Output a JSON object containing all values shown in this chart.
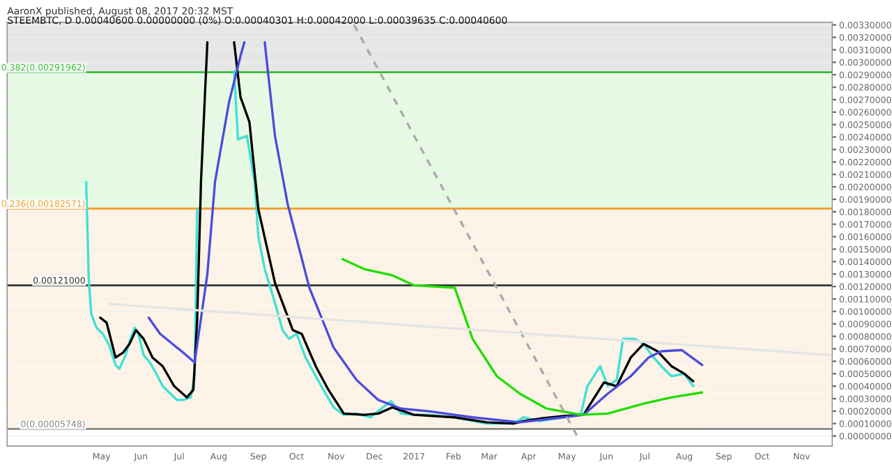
{
  "chart_data": {
    "type": "line",
    "title": "AaronX published, August 08, 2017 20:32 MST",
    "subtitle": "STEEMBTC, D 0.00040600 0.00000000 (0%) O:0.00040301 H:0.00042000 L:0.00039635 C:0.00040600",
    "xlim": [
      "2016-02-17",
      "2017-11-25"
    ],
    "xticks": [
      {
        "value": "2016-05-01",
        "label": "May"
      },
      {
        "value": "2016-06-01",
        "label": "Jun"
      },
      {
        "value": "2016-07-01",
        "label": "Jul"
      },
      {
        "value": "2016-08-01",
        "label": "Aug"
      },
      {
        "value": "2016-09-01",
        "label": "Sep"
      },
      {
        "value": "2016-10-01",
        "label": "Oct"
      },
      {
        "value": "2016-11-01",
        "label": "Nov"
      },
      {
        "value": "2016-12-01",
        "label": "Dec"
      },
      {
        "value": "2017-01-01",
        "label": "2017"
      },
      {
        "value": "2017-02-01",
        "label": "Feb"
      },
      {
        "value": "2017-03-01",
        "label": "Mar"
      },
      {
        "value": "2017-04-01",
        "label": "Apr"
      },
      {
        "value": "2017-05-01",
        "label": "May"
      },
      {
        "value": "2017-06-01",
        "label": "Jun"
      },
      {
        "value": "2017-07-01",
        "label": "Jul"
      },
      {
        "value": "2017-08-01",
        "label": "Aug"
      },
      {
        "value": "2017-09-01",
        "label": "Sep"
      },
      {
        "value": "2017-10-01",
        "label": "Oct"
      },
      {
        "value": "2017-11-01",
        "label": "Nov"
      }
    ],
    "ylim": [
      -8e-05,
      0.00332
    ],
    "yticks": [
      {
        "value": 0,
        "label": "0.00000000"
      },
      {
        "value": 0.0001,
        "label": "0.00010000"
      },
      {
        "value": 0.0002,
        "label": "0.00020000"
      },
      {
        "value": 0.0003,
        "label": "0.00030000"
      },
      {
        "value": 0.0004,
        "label": "0.00040000"
      },
      {
        "value": 0.0005,
        "label": "0.00050000"
      },
      {
        "value": 0.0006,
        "label": "0.00060000"
      },
      {
        "value": 0.0007,
        "label": "0.00070000"
      },
      {
        "value": 0.0008,
        "label": "0.00080000"
      },
      {
        "value": 0.0009,
        "label": "0.00090000"
      },
      {
        "value": 0.001,
        "label": "0.00100000"
      },
      {
        "value": 0.0011,
        "label": "0.00110000"
      },
      {
        "value": 0.0012,
        "label": "0.00120000"
      },
      {
        "value": 0.0013,
        "label": "0.00130000"
      },
      {
        "value": 0.0014,
        "label": "0.00140000"
      },
      {
        "value": 0.0015,
        "label": "0.00150000"
      },
      {
        "value": 0.0016,
        "label": "0.00160000"
      },
      {
        "value": 0.0017,
        "label": "0.00170000"
      },
      {
        "value": 0.0018,
        "label": "0.00180000"
      },
      {
        "value": 0.0019,
        "label": "0.00190000"
      },
      {
        "value": 0.002,
        "label": "0.00200000"
      },
      {
        "value": 0.0021,
        "label": "0.00210000"
      },
      {
        "value": 0.0022,
        "label": "0.00220000"
      },
      {
        "value": 0.0023,
        "label": "0.00230000"
      },
      {
        "value": 0.0024,
        "label": "0.00240000"
      },
      {
        "value": 0.0025,
        "label": "0.00250000"
      },
      {
        "value": 0.0026,
        "label": "0.00260000"
      },
      {
        "value": 0.0027,
        "label": "0.00270000"
      },
      {
        "value": 0.0028,
        "label": "0.00280000"
      },
      {
        "value": 0.0029,
        "label": "0.00290000"
      },
      {
        "value": 0.003,
        "label": "0.00300000"
      },
      {
        "value": 0.0031,
        "label": "0.00310000"
      },
      {
        "value": 0.0032,
        "label": "0.00320000"
      },
      {
        "value": 0.0033,
        "label": "0.00330000"
      }
    ],
    "grid": "y",
    "bands": [
      {
        "axis": "y",
        "from": 0.00291962,
        "to": 0.00332,
        "color": "#e6e6e6"
      },
      {
        "axis": "y",
        "from": 0.00182571,
        "to": 0.00291962,
        "color": "#e6fae3"
      },
      {
        "axis": "y",
        "from": 5.748e-05,
        "to": 0.00182571,
        "color": "#fdf3e6"
      }
    ],
    "ref_lines": [
      {
        "axis": "y",
        "value": 0.00291962,
        "label": "0.382(0.00291962)",
        "color": "#33bb33"
      },
      {
        "axis": "y",
        "value": 0.00182571,
        "label": "0.236(0.00182571)",
        "color": "#f0a030"
      },
      {
        "axis": "y",
        "value": 5.748e-05,
        "label": "0(0.00005748)",
        "color": "#888888"
      },
      {
        "axis": "y",
        "value": 0.00121,
        "label": "0.00121000",
        "color": "#333333"
      }
    ],
    "series": [
      {
        "color": "#3fe0d5",
        "x": [
          "2016-04-19",
          "2016-04-21",
          "2016-04-23",
          "2016-04-27",
          "2016-05-02",
          "2016-05-07",
          "2016-05-12",
          "2016-05-15",
          "2016-05-20",
          "2016-05-23",
          "2016-05-27",
          "2016-05-30",
          "2016-06-03",
          "2016-06-08",
          "2016-06-13",
          "2016-06-18",
          "2016-06-24",
          "2016-06-29",
          "2016-07-04",
          "2016-07-10",
          "2016-07-13",
          "2016-07-15",
          "2016-07-17",
          "2016-08-13",
          "2016-08-16",
          "2016-08-23",
          "2016-08-29",
          "2016-09-01",
          "2016-09-06",
          "2016-09-14",
          "2016-09-20",
          "2016-09-25",
          "2016-10-01",
          "2016-10-08",
          "2016-10-16",
          "2016-10-22",
          "2016-10-30",
          "2016-11-07",
          "2016-11-17",
          "2016-11-28",
          "2016-12-04",
          "2016-12-14",
          "2016-12-22",
          "2017-01-01",
          "2017-01-12",
          "2017-02-02",
          "2017-02-27",
          "2017-03-20",
          "2017-03-28",
          "2017-04-10",
          "2017-04-28",
          "2017-05-12",
          "2017-05-17",
          "2017-05-27",
          "2017-06-02",
          "2017-06-09",
          "2017-06-14",
          "2017-06-23",
          "2017-06-30",
          "2017-07-08",
          "2017-07-14",
          "2017-07-22",
          "2017-08-01",
          "2017-08-08"
        ],
        "values": [
          0.00204,
          0.00126,
          0.00098,
          0.00087,
          0.00082,
          0.00073,
          0.00057,
          0.00054,
          0.00065,
          0.00076,
          0.00087,
          0.00082,
          0.00065,
          0.00059,
          0.0005,
          0.0004,
          0.00034,
          0.00029,
          0.00029,
          0.00031,
          0.00048,
          0.00182,
          null,
          0.00293,
          0.00238,
          0.00241,
          0.00204,
          0.0016,
          0.00134,
          0.00107,
          0.00085,
          0.00078,
          0.00082,
          0.00063,
          0.00048,
          0.00037,
          0.00023,
          0.00017,
          0.00018,
          0.00015,
          0.0002,
          0.00028,
          0.00018,
          0.00017,
          0.00017,
          0.00015,
          0.0001,
          0.0001,
          0.00015,
          0.00012,
          0.00015,
          0.00018,
          0.0004,
          0.00056,
          0.0004,
          0.00045,
          0.00078,
          0.00078,
          0.00074,
          0.00063,
          0.00056,
          0.00048,
          0.0005,
          0.0004
        ]
      },
      {
        "color": "#000000",
        "x": [
          "2016-04-30",
          "2016-05-05",
          "2016-05-12",
          "2016-05-18",
          "2016-05-23",
          "2016-05-28",
          "2016-06-03",
          "2016-06-10",
          "2016-06-18",
          "2016-06-27",
          "2016-07-07",
          "2016-07-12",
          "2016-07-15",
          "2016-07-18",
          "2016-07-23",
          "2016-07-30",
          "2016-08-13",
          "2016-08-18",
          "2016-08-25",
          "2016-09-01",
          "2016-09-14",
          "2016-09-28",
          "2016-10-05",
          "2016-10-16",
          "2016-10-26",
          "2016-11-07",
          "2016-11-23",
          "2016-12-04",
          "2016-12-15",
          "2017-01-01",
          "2017-02-02",
          "2017-02-27",
          "2017-03-20",
          "2017-03-28",
          "2017-04-10",
          "2017-04-28",
          "2017-05-14",
          "2017-05-30",
          "2017-06-09",
          "2017-06-20",
          "2017-06-30",
          "2017-07-11",
          "2017-07-22",
          "2017-08-01",
          "2017-08-08"
        ],
        "values": [
          0.00095,
          0.00091,
          0.00063,
          0.00067,
          0.00074,
          0.00085,
          0.00078,
          0.00063,
          0.00056,
          0.0004,
          0.00031,
          0.00037,
          0.00093,
          0.00204,
          0.00316,
          null,
          0.00316,
          0.00272,
          0.00252,
          0.00182,
          0.00123,
          0.00085,
          0.00082,
          0.00056,
          0.00037,
          0.00018,
          0.00017,
          0.00018,
          0.00023,
          0.00017,
          0.00015,
          0.00011,
          0.0001,
          0.00012,
          0.00014,
          0.00016,
          0.00017,
          0.00043,
          0.0004,
          0.00063,
          0.00074,
          0.00068,
          0.00056,
          0.0005,
          0.00044
        ]
      },
      {
        "color": "#4b4bdc",
        "x": [
          "2016-06-07",
          "2016-06-16",
          "2016-07-04",
          "2016-07-13",
          "2016-07-23",
          "2016-07-29",
          "2016-08-09",
          "2016-08-18",
          "2016-08-21",
          "2016-08-30",
          "2016-09-06",
          "2016-09-14",
          "2016-09-24",
          "2016-10-11",
          "2016-10-30",
          "2016-11-17",
          "2016-12-04",
          "2016-12-22",
          "2017-01-12",
          "2017-02-16",
          "2017-03-25",
          "2017-04-28",
          "2017-05-14",
          "2017-06-02",
          "2017-06-20",
          "2017-07-04",
          "2017-07-14",
          "2017-07-30",
          "2017-08-15"
        ],
        "values": [
          0.00095,
          0.00082,
          0.00067,
          0.00059,
          0.0013,
          0.00204,
          0.00268,
          0.00305,
          0.00316,
          null,
          0.00316,
          0.00241,
          0.00186,
          0.00119,
          0.00071,
          0.00045,
          0.00029,
          0.00022,
          0.0002,
          0.00015,
          0.00011,
          0.00015,
          0.00017,
          0.00034,
          0.00048,
          0.00063,
          0.00068,
          0.00069,
          0.00057
        ]
      },
      {
        "color": "#22dd00",
        "x": [
          "2016-11-06",
          "2016-11-23",
          "2016-12-15",
          "2017-01-01",
          "2017-02-02",
          "2017-02-16",
          "2017-03-07",
          "2017-03-25",
          "2017-04-15",
          "2017-05-12",
          "2017-06-02",
          "2017-06-30",
          "2017-07-22",
          "2017-08-15"
        ],
        "values": [
          0.00142,
          0.00134,
          0.00129,
          0.00121,
          0.00119,
          0.00078,
          0.00048,
          0.00034,
          0.00022,
          0.00017,
          0.00018,
          0.00026,
          0.00031,
          0.00035
        ]
      },
      {
        "color": "#aaaaaa",
        "line_style": "dashed",
        "x": [
          "2016-11-15",
          "2017-05-09"
        ],
        "values": [
          0.0033,
          0
        ]
      },
      {
        "color": "#e4e4e4",
        "x": [
          "2016-05-07",
          "2017-11-23"
        ],
        "values": [
          0.00106,
          0.00065
        ]
      }
    ]
  }
}
